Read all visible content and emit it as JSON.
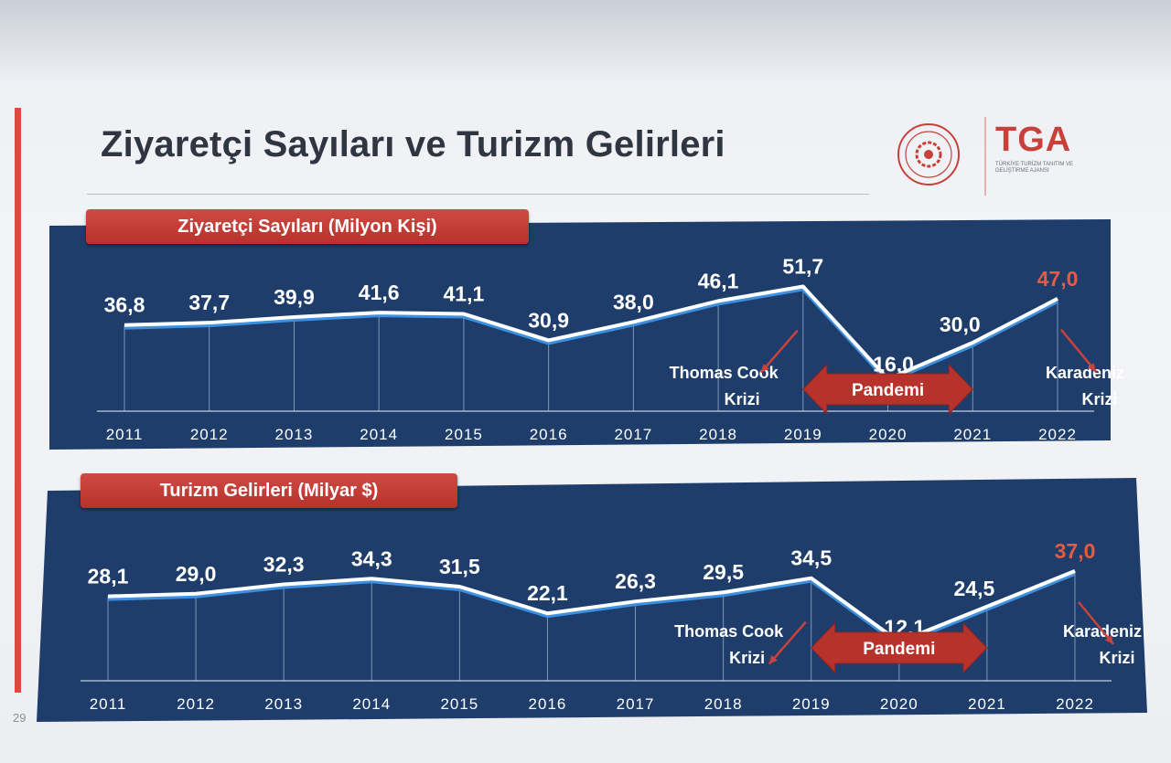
{
  "slide": {
    "title": "Ziyaretçi Sayıları ve Turizm Gelirleri",
    "page_number": "29",
    "logo_right": "TGA",
    "logo_right_subtitle": "TÜRKİYE TURİZM TANITIM VE GELİŞTİRME AJANSI",
    "accent_color": "#e0473f",
    "panel_color": "#1e3d6b"
  },
  "chart_data": [
    {
      "type": "line",
      "title": "Ziyaretçi Sayıları (Milyon Kişi)",
      "x": [
        "2011",
        "2012",
        "2013",
        "2014",
        "2015",
        "2016",
        "2017",
        "2018",
        "2019",
        "2020",
        "2021",
        "2022"
      ],
      "values": [
        36.8,
        37.7,
        39.9,
        41.6,
        41.1,
        30.9,
        38.0,
        46.1,
        51.7,
        16.0,
        30.0,
        47.0
      ],
      "labels": [
        "36,8",
        "37,7",
        "39,9",
        "41,6",
        "41,1",
        "30,9",
        "38,0",
        "46,1",
        "51,7",
        "16,0",
        "30,0",
        "47,0"
      ],
      "ylim": [
        0,
        60
      ],
      "grid": false,
      "highlight_last_color": "#e25c45",
      "annotations": {
        "thomas_cook": [
          "Thomas Cook",
          "Krizi"
        ],
        "pandemi": "Pandemi",
        "karadeniz": [
          "Karadeniz",
          "Krizi"
        ]
      }
    },
    {
      "type": "line",
      "title": "Turizm Gelirleri (Milyar $)",
      "x": [
        "2011",
        "2012",
        "2013",
        "2014",
        "2015",
        "2016",
        "2017",
        "2018",
        "2019",
        "2020",
        "2021",
        "2022"
      ],
      "values": [
        28.1,
        29.0,
        32.3,
        34.3,
        31.5,
        22.1,
        26.3,
        29.5,
        34.5,
        12.1,
        24.5,
        37.0
      ],
      "labels": [
        "28,1",
        "29,0",
        "32,3",
        "34,3",
        "31,5",
        "22,1",
        "26,3",
        "29,5",
        "34,5",
        "12,1",
        "24,5",
        "37,0"
      ],
      "ylim": [
        0,
        45
      ],
      "grid": false,
      "highlight_last_color": "#e25c45",
      "annotations": {
        "thomas_cook": [
          "Thomas Cook",
          "Krizi"
        ],
        "pandemi": "Pandemi",
        "karadeniz": [
          "Karadeniz",
          "Krizi"
        ]
      }
    }
  ]
}
